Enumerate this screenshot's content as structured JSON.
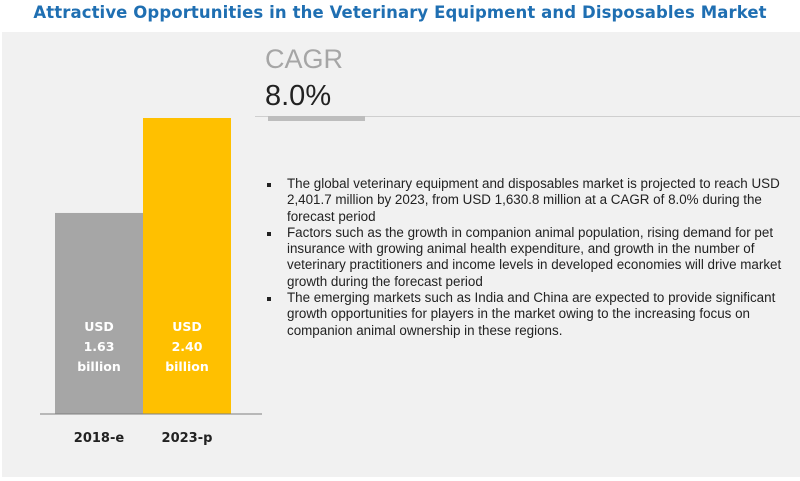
{
  "chart_data": {
    "type": "bar",
    "title": "Attractive Opportunities in the Veterinary Equipment and Disposables Market",
    "categories": [
      "2018-e",
      "2023-p"
    ],
    "values": [
      1.63,
      2.4
    ],
    "unit": "USD billion",
    "data_labels": [
      [
        "USD",
        "1.63",
        "billion"
      ],
      [
        "USD",
        "2.40",
        "billion"
      ]
    ],
    "colors": [
      "#a6a6a6",
      "#ffc000"
    ],
    "xlabel": "",
    "ylabel": "",
    "ylim": [
      0,
      2.6
    ]
  },
  "cagr": {
    "label": "CAGR",
    "value": "8.0%"
  },
  "bullets": [
    "The global veterinary equipment and disposables market is projected to reach USD 2,401.7 million by 2023, from USD 1,630.8 million at a CAGR of 8.0% during the forecast period",
    "Factors such as the growth in companion animal population, rising demand for pet insurance with growing animal health expenditure, and growth in the number of veterinary practitioners and income levels in developed economies will drive market growth during the forecast period",
    "The emerging markets such as India and China are expected to provide significant growth opportunities for players in the market owing to the increasing focus on companion animal ownership in these regions."
  ]
}
